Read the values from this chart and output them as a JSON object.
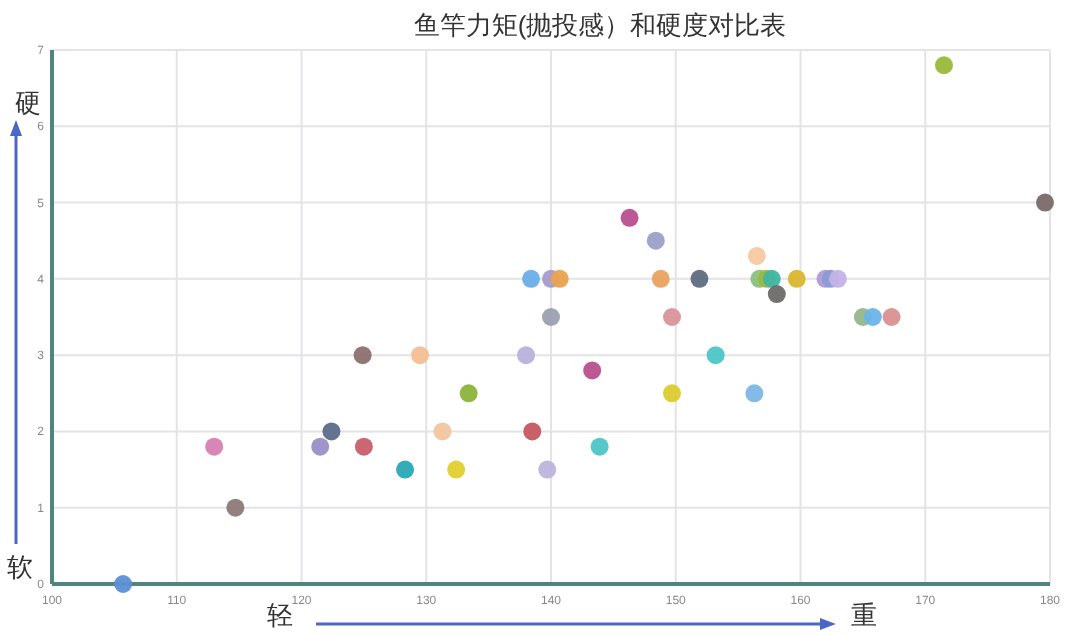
{
  "chart_data": {
    "type": "scatter",
    "title": "鱼竿力矩(抛投感）和硬度对比表",
    "annotations": [
      "硬",
      "软",
      "轻",
      "重"
    ],
    "x": [
      105.7,
      114.7,
      113.0,
      121.5,
      122.4,
      125.0,
      124.9,
      129.5,
      128.3,
      131.3,
      132.4,
      133.4,
      138.4,
      138.0,
      138.5,
      140.0,
      140.7,
      140.0,
      139.7,
      143.3,
      143.9,
      146.3,
      148.4,
      148.8,
      149.7,
      149.7,
      151.9,
      153.2,
      156.3,
      156.5,
      156.7,
      157.3,
      157.7,
      158.1,
      159.7,
      162.0,
      162.4,
      163.0,
      165.0,
      165.8,
      167.3,
      171.5,
      179.6
    ],
    "values": [
      0,
      1,
      1.8,
      1.8,
      2,
      1.8,
      3,
      3,
      1.5,
      2,
      1.5,
      2.5,
      4,
      3,
      2,
      4,
      4,
      3.5,
      1.5,
      2.8,
      1.8,
      4.8,
      4.5,
      4,
      3.5,
      2.5,
      4,
      3,
      2.5,
      4.3,
      4,
      4,
      4,
      3.8,
      4,
      4,
      4,
      4,
      3.5,
      3.5,
      3.5,
      6.8,
      5
    ],
    "colors": [
      "#5b8fd6",
      "#8c7a78",
      "#d77fb3",
      "#9a8fc8",
      "#5d6b8c",
      "#c95f6a",
      "#8c7070",
      "#f2bf94",
      "#2aa8b5",
      "#f2c6a0",
      "#e2cf2e",
      "#8db33a",
      "#6aaee8",
      "#b9b1dc",
      "#c4585f",
      "#a49bc9",
      "#eaa24f",
      "#9aa0ae",
      "#bdb4dc",
      "#b9508c",
      "#4cc6c6",
      "#b84f8f",
      "#9aa0c8",
      "#eaa25f",
      "#d9939a",
      "#dccb2e",
      "#5f6b80",
      "#4cc6c6",
      "#7cb6e6",
      "#f5c8a0",
      "#8cc07e",
      "#a0b83a",
      "#3fb5a5",
      "#6e6a6a",
      "#d9b52e",
      "#b39bd6",
      "#8a9bd6",
      "#c4b3e6",
      "#97b58a",
      "#6ab5e8",
      "#d99090",
      "#9ab83a",
      "#7a6a6a"
    ],
    "xlim": [
      100,
      180
    ],
    "ylim": [
      0,
      7
    ],
    "xticks": [
      100,
      110,
      120,
      130,
      140,
      150,
      160,
      170,
      180
    ],
    "yticks": [
      0,
      1,
      2,
      3,
      4,
      5,
      6,
      7
    ],
    "grid": true,
    "marker": "circle"
  }
}
